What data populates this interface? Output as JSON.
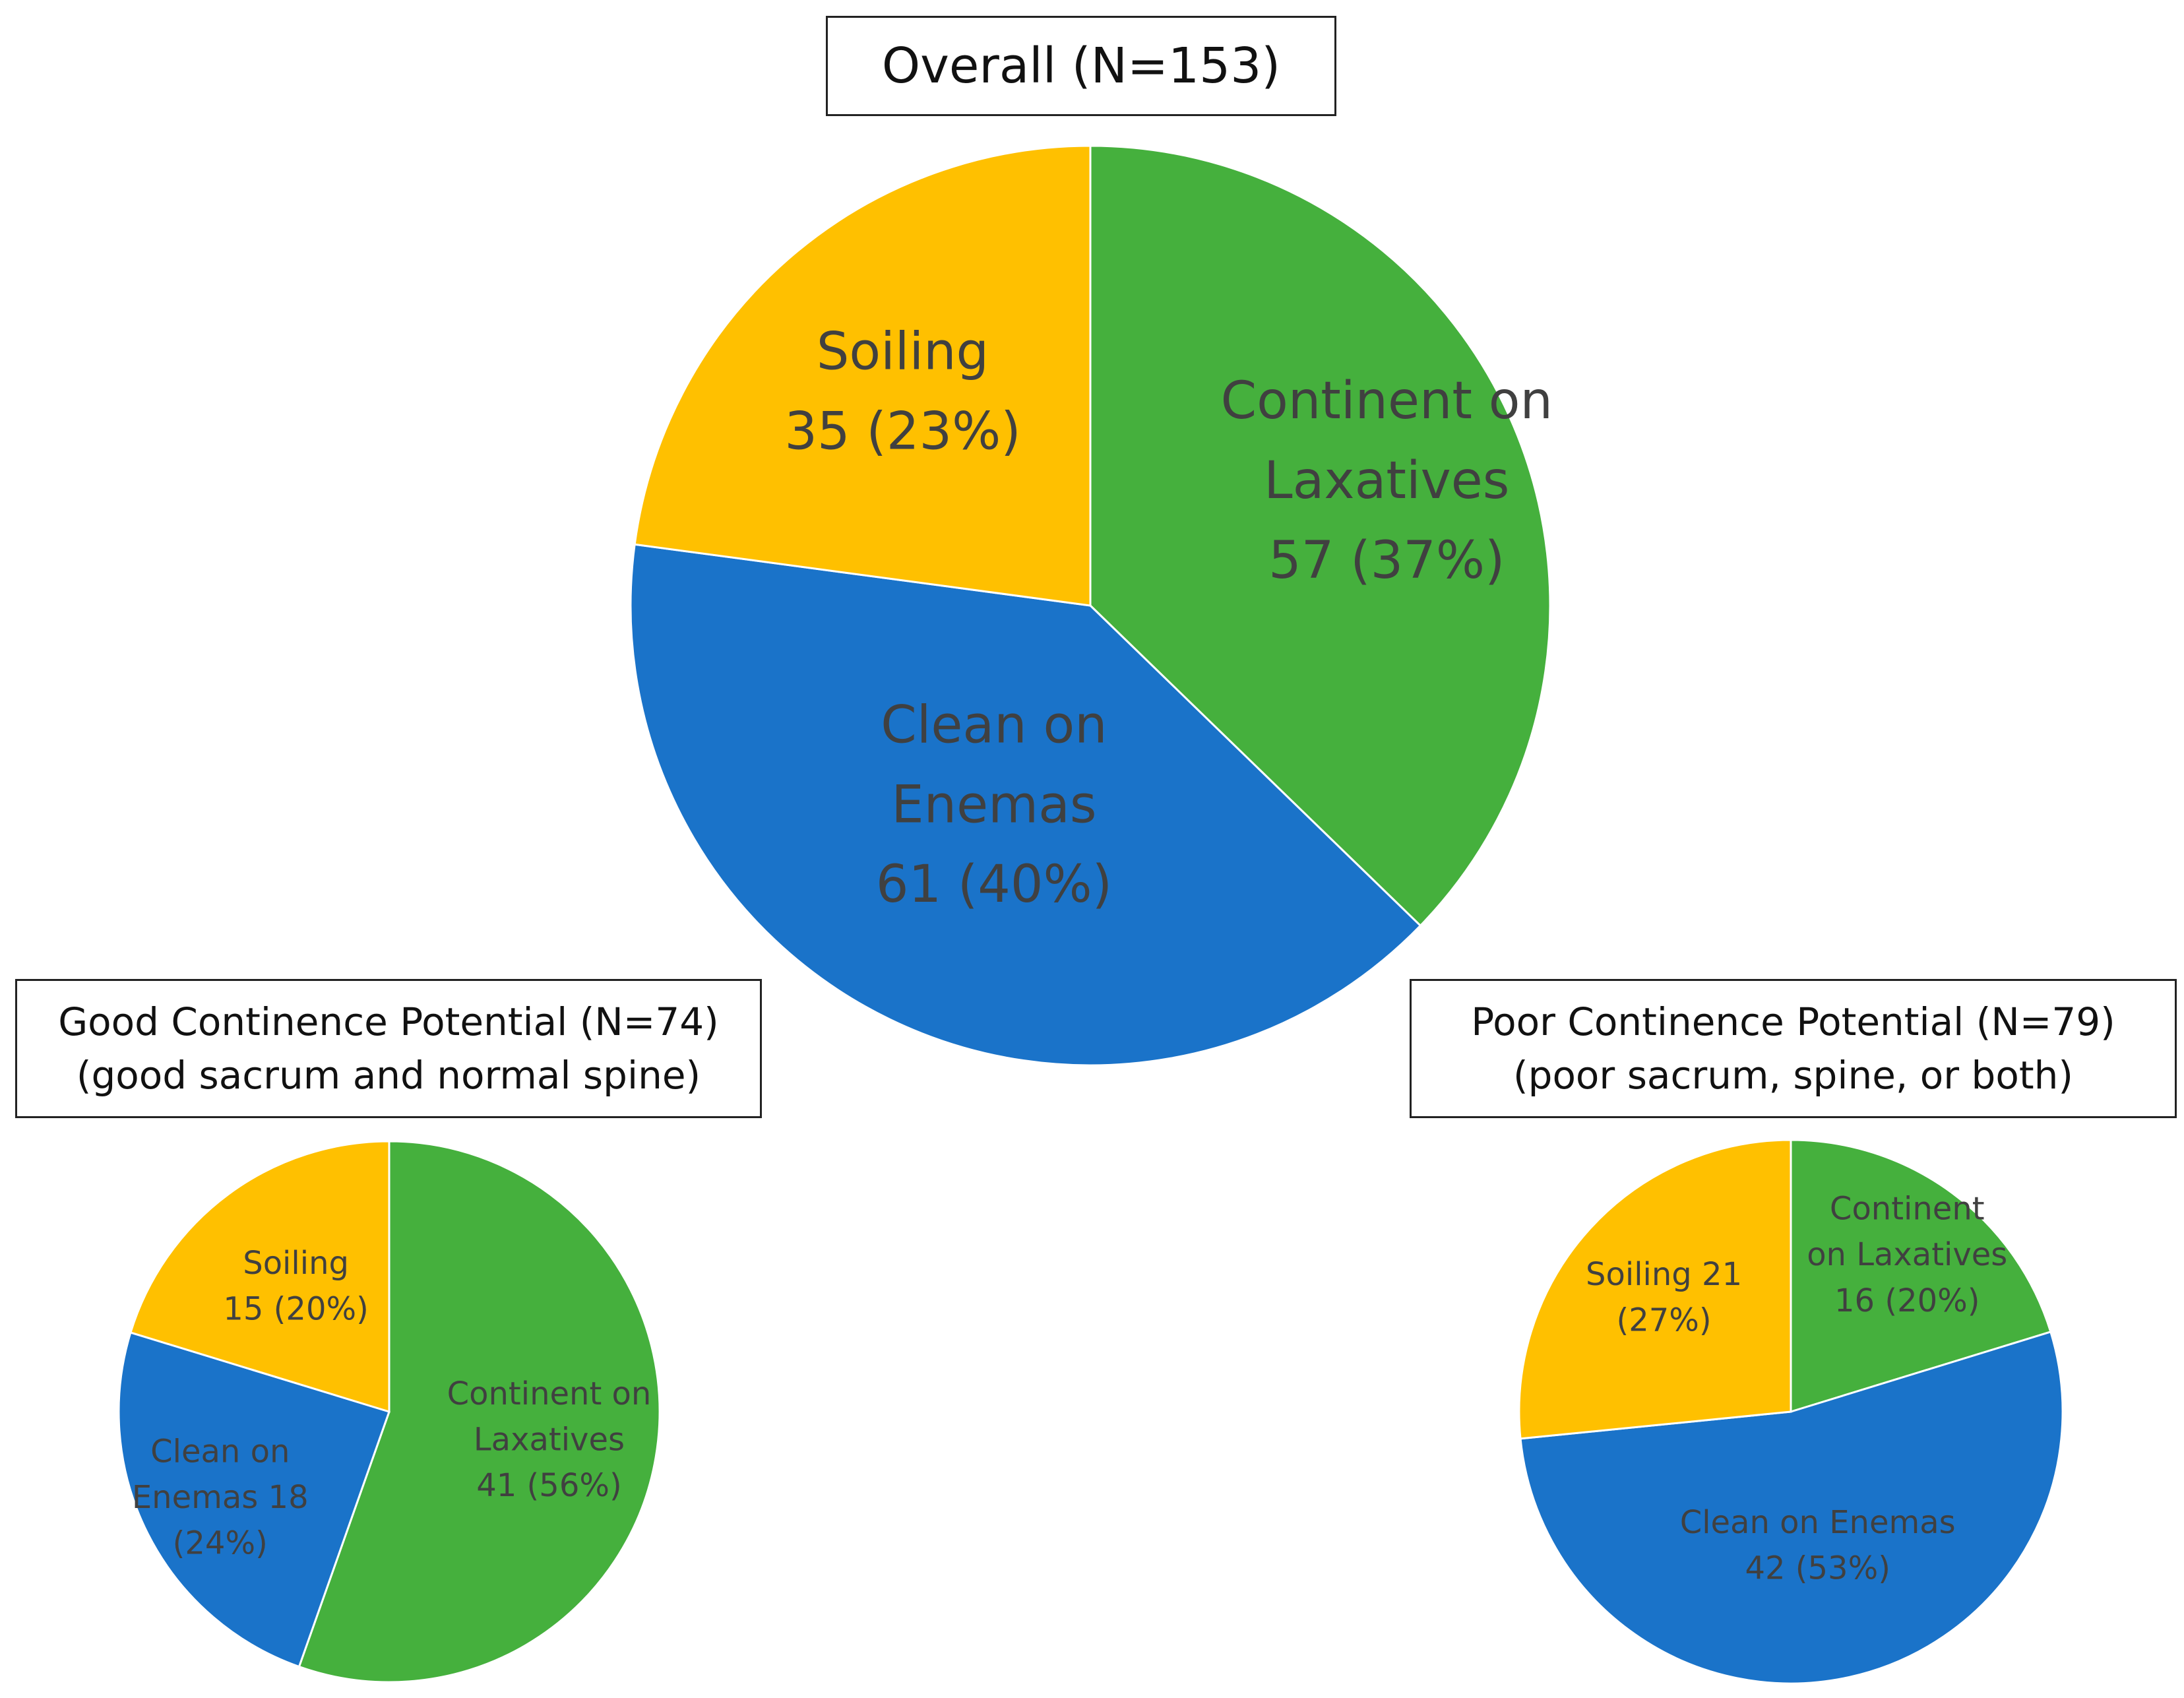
{
  "chart_data": [
    {
      "type": "pie",
      "id": "overall",
      "title": "Overall (N=153)",
      "subtitle": "",
      "slices": [
        {
          "name": "Continent on Laxatives",
          "value": 57,
          "percent": 37,
          "color": "#45B03D",
          "label_lines": [
            "Continent on",
            "Laxatives",
            "57 (37%)"
          ]
        },
        {
          "name": "Clean on Enemas",
          "value": 61,
          "percent": 40,
          "color": "#1A73C9",
          "label_lines": [
            "Clean on",
            "Enemas",
            "61 (40%)"
          ]
        },
        {
          "name": "Soiling",
          "value": 35,
          "percent": 23,
          "color": "#FFC000",
          "label_lines": [
            "Soiling",
            "35 (23%)"
          ]
        }
      ]
    },
    {
      "type": "pie",
      "id": "good",
      "title": "Good Continence Potential (N=74)",
      "subtitle": "(good sacrum and normal spine)",
      "slices": [
        {
          "name": "Continent on Laxatives",
          "value": 41,
          "percent": 56,
          "color": "#45B03D",
          "label_lines": [
            "Continent on",
            "Laxatives",
            "41 (56%)"
          ]
        },
        {
          "name": "Clean on Enemas",
          "value": 18,
          "percent": 24,
          "color": "#1A73C9",
          "label_lines": [
            "Clean on",
            "Enemas 18",
            "(24%)"
          ]
        },
        {
          "name": "Soiling",
          "value": 15,
          "percent": 20,
          "color": "#FFC000",
          "label_lines": [
            "Soiling",
            "15 (20%)"
          ]
        }
      ]
    },
    {
      "type": "pie",
      "id": "poor",
      "title": "Poor Continence Potential (N=79)",
      "subtitle": "(poor sacrum, spine, or both)",
      "slices": [
        {
          "name": "Continent on Laxatives",
          "value": 16,
          "percent": 20,
          "color": "#45B03D",
          "label_lines": [
            "Continent",
            "on Laxatives",
            "16 (20%)"
          ]
        },
        {
          "name": "Clean on Enemas",
          "value": 42,
          "percent": 53,
          "color": "#1A73C9",
          "label_lines": [
            "Clean on Enemas",
            "42 (53%)"
          ]
        },
        {
          "name": "Soiling",
          "value": 21,
          "percent": 27,
          "color": "#FFC000",
          "label_lines": [
            "Soiling 21",
            "(27%)"
          ]
        }
      ]
    }
  ]
}
